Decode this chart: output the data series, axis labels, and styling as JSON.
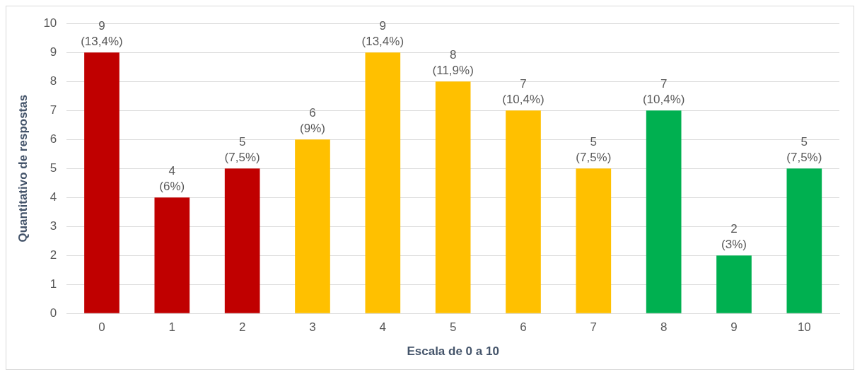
{
  "chart_data": {
    "type": "bar",
    "xlabel": "Escala de 0 a 10",
    "ylabel": "Quantitativo de respostas",
    "categories": [
      "0",
      "1",
      "2",
      "3",
      "4",
      "5",
      "6",
      "7",
      "8",
      "9",
      "10"
    ],
    "values": [
      9,
      4,
      5,
      6,
      9,
      8,
      7,
      5,
      7,
      2,
      5
    ],
    "colors": [
      "#c00000",
      "#c00000",
      "#c00000",
      "#ffc000",
      "#ffc000",
      "#ffc000",
      "#ffc000",
      "#ffc000",
      "#00b050",
      "#00b050",
      "#00b050"
    ],
    "value_labels": [
      "9 (13,4%)",
      "4 (6%)",
      "5 (7,5%)",
      "6 (9%)",
      "9 (13,4%)",
      "8 (11,9%)",
      "7 (10,4%)",
      "5 (7,5%)",
      "7 (10,4%)",
      "2 (3%)",
      "5 (7,5%)"
    ],
    "ylim": [
      0,
      10
    ],
    "yticks": [
      0,
      1,
      2,
      3,
      4,
      5,
      6,
      7,
      8,
      9,
      10
    ],
    "grid": "y",
    "legend": false
  }
}
